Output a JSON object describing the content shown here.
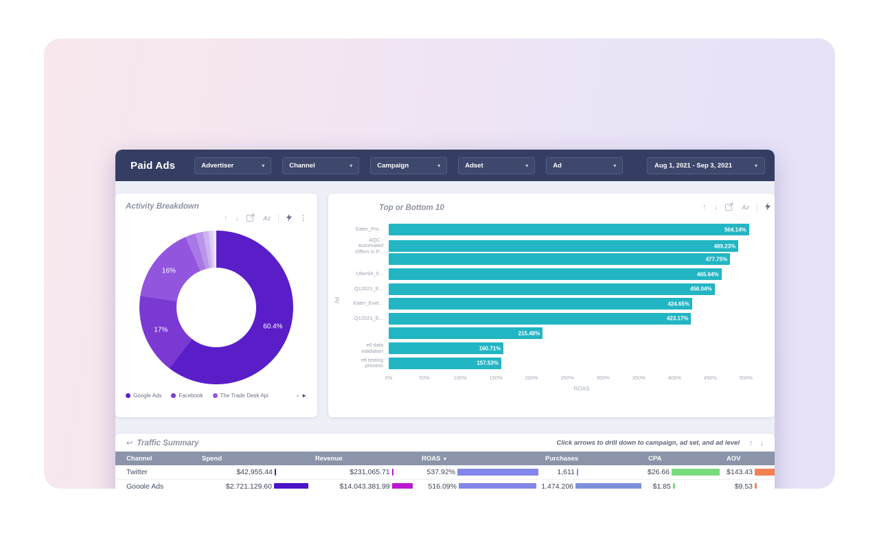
{
  "header": {
    "title": "Paid Ads",
    "filters": [
      {
        "label": "Advertiser"
      },
      {
        "label": "Channel"
      },
      {
        "label": "Campaign"
      },
      {
        "label": "Adset"
      },
      {
        "label": "Ad"
      }
    ],
    "date_range": "Aug 1, 2021 - Sep 3, 2021",
    "chevron": "▾"
  },
  "donut_panel": {
    "title": "Activity Breakdown",
    "icons": [
      "arrow-up",
      "arrow-down",
      "export",
      "az",
      "divider",
      "flash",
      "kebab"
    ],
    "legend": [
      {
        "label": "Google Ads",
        "color": "#5a1ec9"
      },
      {
        "label": "Facebook",
        "color": "#7a39d3"
      },
      {
        "label": "The Trade Desk Api",
        "color": "#9256de"
      }
    ],
    "pager_prev": "◄",
    "pager_next": "►"
  },
  "bar_panel": {
    "title": "Top or Bottom 10",
    "icons": [
      "arrow-up",
      "arrow-down",
      "export",
      "az",
      "divider",
      "flash"
    ],
    "y_axis_label": "Ad",
    "x_axis_label": "ROAS"
  },
  "table_panel": {
    "title": "Traffic Summary",
    "hint": "Click arrows to drill down to campaign, ad set, and ad level",
    "arrow_up": "↑",
    "arrow_down": "↓",
    "drill_icon": "↩",
    "columns": [
      "Channel",
      "Spend",
      "Revenue",
      "ROAS",
      "Purchases",
      "CPA",
      "AOV"
    ],
    "sort_column": "ROAS",
    "sort_glyph": "▼",
    "bar_colors": {
      "spend": "#4a13c8",
      "revenue": "#bb17d0",
      "roas": "#8286e9",
      "purchases": "#7d90da",
      "cpa": "#78dc7c",
      "aov": "#f08155"
    },
    "rows": [
      {
        "channel": "Twitter",
        "spend": "$42,955.44",
        "revenue": "$231,065.71",
        "roas": "537.92%",
        "purchases": "1,611",
        "cpa": "$26.66",
        "aov": "$143.43",
        "bars": {
          "spend": 0.04,
          "revenue": 0.05,
          "roas": 1.0,
          "purchases": 0.02,
          "cpa": 1.0,
          "aov": 1.0
        }
      },
      {
        "channel": "Google Ads",
        "spend": "$2,721,129.60",
        "revenue": "$14,043,381.99",
        "roas": "516.09%",
        "purchases": "1,474,206",
        "cpa": "$1.85",
        "aov": "$9.53",
        "bars": {
          "spend": 1.0,
          "revenue": 0.9,
          "roas": 0.96,
          "purchases": 1.0,
          "cpa": 0.05,
          "aov": 0.08
        }
      }
    ]
  },
  "chart_data": [
    {
      "type": "pie",
      "donut": true,
      "title": "Activity Breakdown",
      "labels": [
        "Google Ads",
        "Facebook",
        "The Trade Desk Api",
        "",
        "",
        "",
        "",
        ""
      ],
      "values": [
        60.4,
        17,
        16,
        2.2,
        1.6,
        1.2,
        0.9,
        0.7
      ],
      "colors": [
        "#5a1ec9",
        "#7a39d3",
        "#9256de",
        "#a878e6",
        "#bb95ec",
        "#cdb2f1",
        "#dfcdf7",
        "#eee6fb"
      ],
      "shown_labels": [
        "60.4%",
        "17%",
        "16%"
      ],
      "legend_position": "bottom"
    },
    {
      "type": "bar",
      "orientation": "horizontal",
      "title": "Top or Bottom 10",
      "categories": [
        "Eater_Pro...",
        "AQC -\nAutomated\nOffers in P...",
        "",
        "Uber94_0...",
        "Q12021_E...",
        "Eater_Ever...",
        "Q12021_E...",
        "",
        "etl data\nvalidation",
        "etl testing\nprocess"
      ],
      "values": [
        504.14,
        489.23,
        477.75,
        465.64,
        456.04,
        424.65,
        423.17,
        215.48,
        160.71,
        157.53
      ],
      "value_labels": [
        "504.14%",
        "489.23%",
        "477.75%",
        "465.64%",
        "456.04%",
        "424.65%",
        "423.17%",
        "215.48%",
        "160.71%",
        "157.53%"
      ],
      "bar_color": "#22b5c3",
      "xlabel": "ROAS",
      "ylabel": "Ad",
      "xlim": [
        0,
        540
      ],
      "xtick_values": [
        0,
        50,
        100,
        150,
        200,
        250,
        300,
        350,
        400,
        450,
        500
      ],
      "xtick_labels": [
        "0%",
        "50%",
        "100%",
        "150%",
        "200%",
        "250%",
        "300%",
        "350%",
        "400%",
        "450%",
        "500%"
      ],
      "grid": false
    }
  ]
}
